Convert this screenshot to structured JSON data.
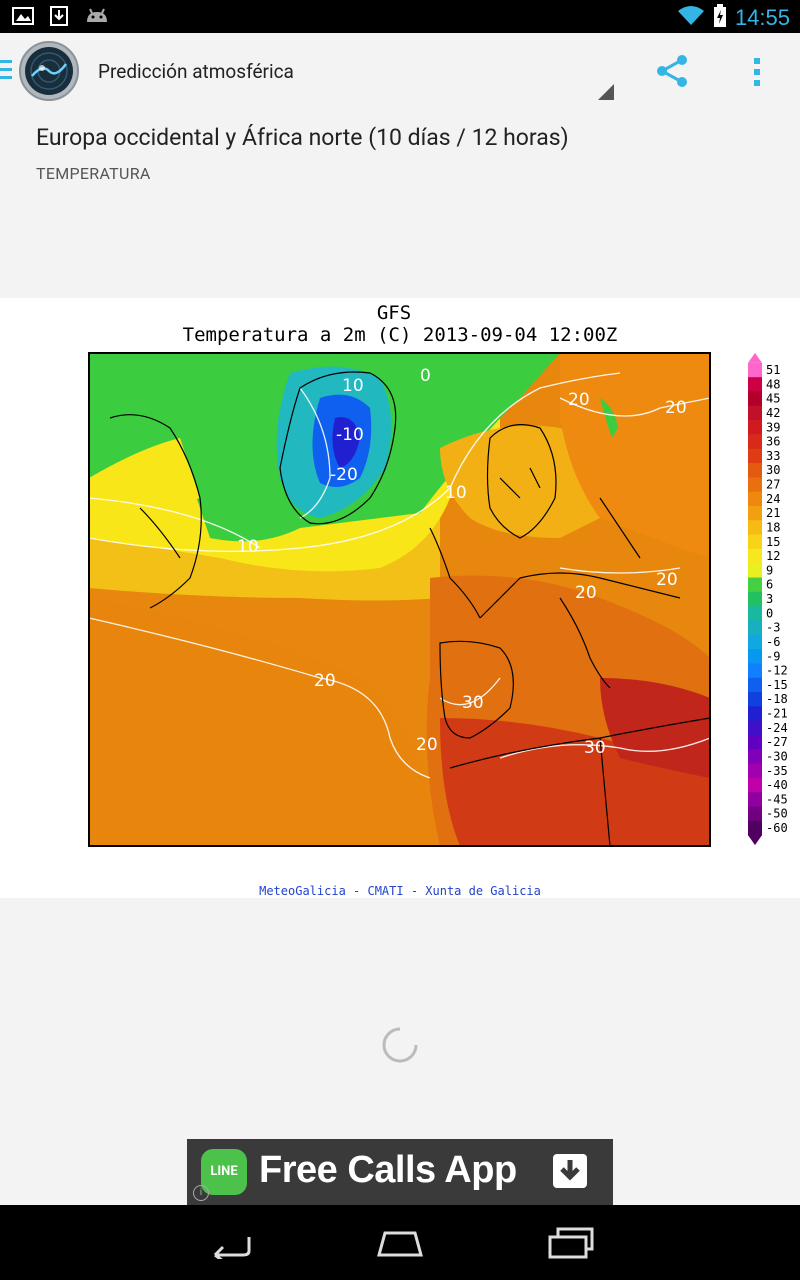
{
  "status_bar": {
    "time": "14:55"
  },
  "action_bar": {
    "title": "Predicción atmosférica"
  },
  "page": {
    "heading": "Europa occidental y África norte (10 días / 12 horas)",
    "subheading": "TEMPERATURA"
  },
  "map": {
    "model": "GFS",
    "title": "Temperatura a 2m (C) 2013-09-04 12:00Z",
    "credit": "MeteoGalicia - CMATI - Xunta de Galicia",
    "contour_labels": [
      "10",
      "0",
      "-10",
      "-20",
      "10",
      "20",
      "10",
      "20",
      "20",
      "30",
      "30",
      "20",
      "20",
      "20"
    ],
    "legend_labels": [
      "51",
      "48",
      "45",
      "42",
      "39",
      "36",
      "33",
      "30",
      "27",
      "24",
      "21",
      "18",
      "15",
      "12",
      "9",
      "6",
      "3",
      "0",
      "-3",
      "-6",
      "-9",
      "-12",
      "-15",
      "-18",
      "-21",
      "-24",
      "-27",
      "-30",
      "-35",
      "-40",
      "-45",
      "-50",
      "-60"
    ],
    "legend_colors": [
      "#ff66cc",
      "#cc0044",
      "#b3002a",
      "#c0102a",
      "#d01a20",
      "#d82a18",
      "#e03c14",
      "#e45a10",
      "#e8700e",
      "#ee880e",
      "#f2a010",
      "#f6bc14",
      "#f8d418",
      "#f6e81c",
      "#e8f020",
      "#44d040",
      "#22c060",
      "#1ab8a0",
      "#18b0c0",
      "#10a8e0",
      "#0898f0",
      "#1080ff",
      "#1060f0",
      "#1040e0",
      "#2020d0",
      "#4010c8",
      "#6000c0",
      "#8000b8",
      "#a000b0",
      "#c000a8",
      "#9000a0",
      "#700080",
      "#500060"
    ]
  },
  "ad": {
    "brand": "LINE",
    "text": "Free Calls App",
    "info": "i"
  },
  "colors": {
    "accent": "#33b5e5",
    "action_icon": "#33b5e5"
  }
}
